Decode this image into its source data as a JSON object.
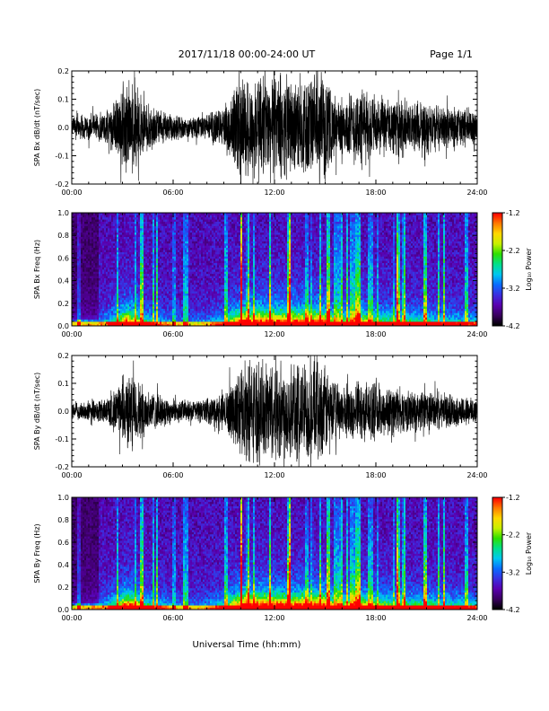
{
  "header": {
    "title": "2017/11/18   00:00-24:00 UT",
    "page": "Page 1/1"
  },
  "footer": {
    "xlabel": "Universal Time (hh:mm)"
  },
  "colorbar_colors": [
    "#000000",
    "#3a0060",
    "#5a00b0",
    "#3b2fe0",
    "#0a6cff",
    "#00c8f0",
    "#00e08a",
    "#2ee000",
    "#c8f000",
    "#ffd800",
    "#ff7a00",
    "#ff0000"
  ],
  "chart_data": [
    {
      "type": "line",
      "ylabel": "SPA Bx dB/dt (nT/sec)",
      "xlim": [
        0,
        24
      ],
      "ylim": [
        -0.2,
        0.2
      ],
      "xticks": [
        "00:00",
        "06:00",
        "12:00",
        "18:00",
        "24:00"
      ],
      "yticks": [
        "-0.2",
        "-0.1",
        "0.0",
        "0.1",
        "0.2"
      ],
      "envelope": {
        "hours": [
          0,
          1,
          2,
          2.8,
          3.2,
          3.7,
          4.3,
          5,
          6,
          7,
          8,
          9,
          9.5,
          10,
          10.5,
          11,
          12,
          13,
          14,
          14.5,
          15,
          15.5,
          16,
          17,
          18,
          19,
          20,
          21,
          22,
          23,
          24
        ],
        "amplitude": [
          0.04,
          0.05,
          0.06,
          0.12,
          0.2,
          0.16,
          0.1,
          0.07,
          0.05,
          0.04,
          0.05,
          0.08,
          0.14,
          0.2,
          0.2,
          0.2,
          0.2,
          0.19,
          0.2,
          0.2,
          0.19,
          0.13,
          0.11,
          0.16,
          0.12,
          0.11,
          0.1,
          0.1,
          0.08,
          0.08,
          0.07
        ]
      }
    },
    {
      "type": "heatmap",
      "ylabel": "SPA Bx Freq (Hz)",
      "xlim": [
        0,
        24
      ],
      "ylim": [
        0,
        1.0
      ],
      "xticks": [
        "00:00",
        "06:00",
        "12:00",
        "18:00",
        "24:00"
      ],
      "yticks": [
        "0.0",
        "0.2",
        "0.4",
        "0.6",
        "0.8",
        "1.0"
      ],
      "colorbar": {
        "label": "Log₁₀ Power",
        "range": [
          -4.2,
          -1.2
        ],
        "ticks": [
          "-1.2",
          "-2.2",
          "-3.2",
          "-4.2"
        ]
      }
    },
    {
      "type": "line",
      "ylabel": "SPA By dB/dt (nT/sec)",
      "xlim": [
        0,
        24
      ],
      "ylim": [
        -0.2,
        0.2
      ],
      "xticks": [
        "00:00",
        "06:00",
        "12:00",
        "18:00",
        "24:00"
      ],
      "yticks": [
        "-0.2",
        "-0.1",
        "0.0",
        "0.1",
        "0.2"
      ],
      "envelope": {
        "hours": [
          0,
          1,
          2,
          2.8,
          3.2,
          3.7,
          4.3,
          5,
          6,
          7,
          8,
          9,
          9.5,
          10,
          10.5,
          11,
          12,
          13,
          14,
          14.5,
          15,
          15.5,
          16,
          17,
          18,
          19,
          20,
          21,
          22,
          23,
          24
        ],
        "amplitude": [
          0.03,
          0.04,
          0.05,
          0.1,
          0.15,
          0.14,
          0.1,
          0.07,
          0.05,
          0.04,
          0.05,
          0.07,
          0.12,
          0.18,
          0.2,
          0.2,
          0.2,
          0.2,
          0.2,
          0.2,
          0.18,
          0.12,
          0.1,
          0.12,
          0.11,
          0.1,
          0.08,
          0.08,
          0.07,
          0.06,
          0.06
        ]
      }
    },
    {
      "type": "heatmap",
      "ylabel": "SPA By Freq (Hz)",
      "xlim": [
        0,
        24
      ],
      "ylim": [
        0,
        1.0
      ],
      "xticks": [
        "00:00",
        "06:00",
        "12:00",
        "18:00",
        "24:00"
      ],
      "yticks": [
        "0.0",
        "0.2",
        "0.4",
        "0.6",
        "0.8",
        "1.0"
      ],
      "colorbar": {
        "label": "Log₁₀ Power",
        "range": [
          -4.2,
          -1.2
        ],
        "ticks": [
          "-1.2",
          "-2.2",
          "-3.2",
          "-4.2"
        ]
      }
    }
  ]
}
